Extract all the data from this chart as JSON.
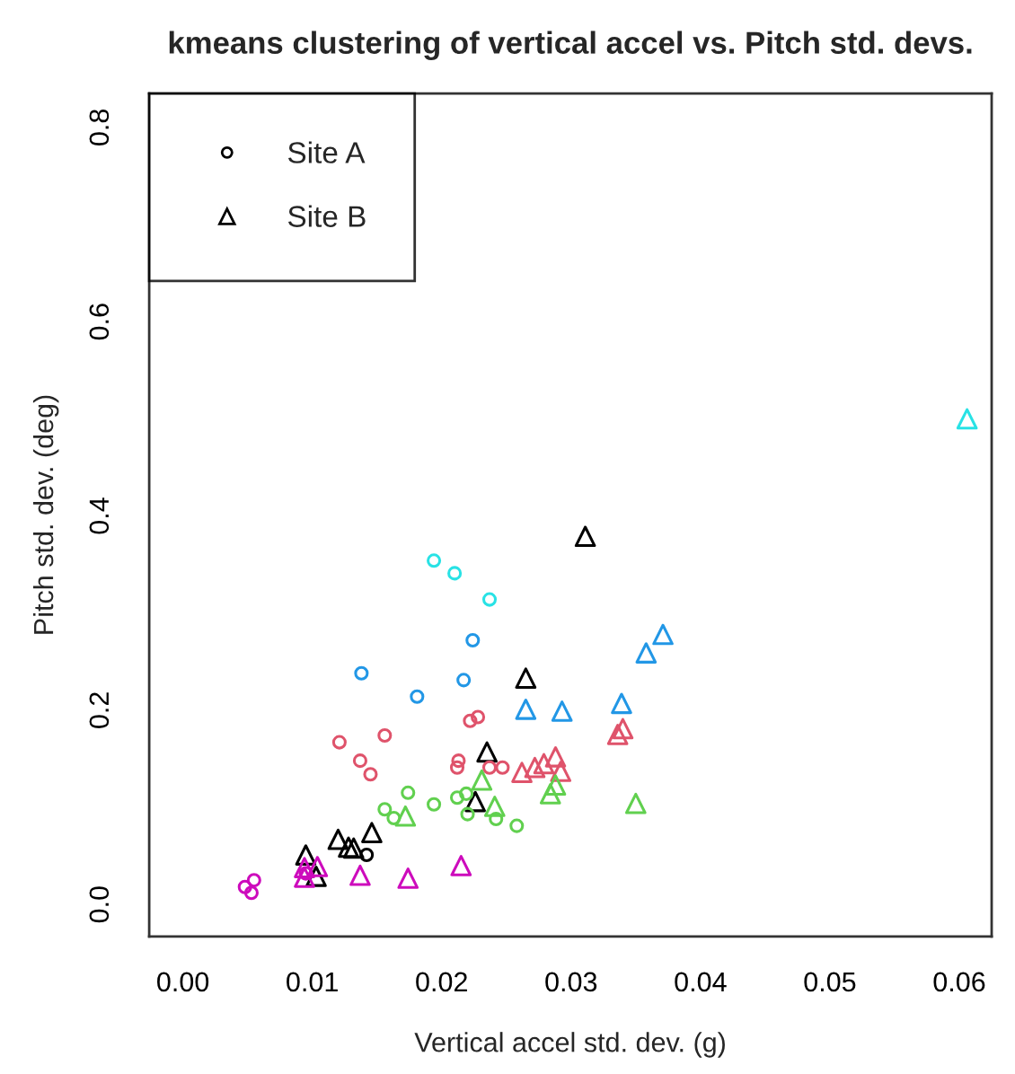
{
  "chart_data": {
    "type": "scatter",
    "title": "kmeans clustering of vertical accel vs. Pitch std. devs.",
    "xlabel": "Vertical accel std. dev. (g)",
    "ylabel": "Pitch std. dev. (deg)",
    "xlim": [
      -0.0026,
      0.0625
    ],
    "ylim": [
      -0.033,
      0.835
    ],
    "xticks": [
      {
        "value": 0,
        "label": "0.00"
      },
      {
        "value": 0.01,
        "label": "0.01"
      },
      {
        "value": 0.02,
        "label": "0.02"
      },
      {
        "value": 0.03,
        "label": "0.03"
      },
      {
        "value": 0.04,
        "label": "0.04"
      },
      {
        "value": 0.05,
        "label": "0.05"
      },
      {
        "value": 0.06,
        "label": "0.06"
      }
    ],
    "yticks": [
      {
        "value": 0,
        "label": "0.0"
      },
      0.2,
      0.4,
      0.6,
      0.8
    ],
    "grid": false,
    "legend": "top left",
    "series": [
      {
        "name": "Site A",
        "color": "#000000",
        "marker": "circle",
        "x": [
          0.0142
        ],
        "values": [
          0.051
        ]
      },
      {
        "name": "Site B",
        "color": "#000000",
        "marker": "triangle",
        "x": [
          0.0146,
          0.012,
          0.0095,
          0.0132
        ],
        "values": [
          0.074,
          0.067,
          0.051,
          0.058
        ]
      },
      {
        "color": "#000000",
        "marker": "triangle",
        "x": [
          0.0128,
          0.0103,
          0.0311,
          0.0265,
          0.0235,
          0.0226
        ],
        "values": [
          0.059,
          0.029,
          0.379,
          0.233,
          0.157,
          0.106
        ]
      },
      {
        "color": "#DF536B",
        "marker": "circle",
        "x": [
          0.0121,
          0.0156,
          0.0137,
          0.0145,
          0.0222,
          0.0228,
          0.0213,
          0.0212,
          0.0237,
          0.0247
        ],
        "values": [
          0.167,
          0.174,
          0.148,
          0.134,
          0.189,
          0.193,
          0.148,
          0.141,
          0.141,
          0.141
        ]
      },
      {
        "color": "#DF536B",
        "marker": "triangle",
        "x": [
          0.0262,
          0.0272,
          0.0279,
          0.0288,
          0.0292,
          0.0336,
          0.034
        ],
        "values": [
          0.136,
          0.141,
          0.145,
          0.152,
          0.137,
          0.175,
          0.181
        ]
      },
      {
        "color": "#61D04F",
        "marker": "circle",
        "x": [
          0.0174,
          0.0156,
          0.0163,
          0.0194,
          0.0212,
          0.0219,
          0.022,
          0.0242,
          0.0258
        ],
        "values": [
          0.115,
          0.098,
          0.089,
          0.103,
          0.11,
          0.114,
          0.093,
          0.088,
          0.081
        ]
      },
      {
        "color": "#61D04F",
        "marker": "triangle",
        "x": [
          0.0172,
          0.0231,
          0.0241,
          0.0284,
          0.0288,
          0.035
        ],
        "values": [
          0.091,
          0.128,
          0.101,
          0.114,
          0.123,
          0.104
        ]
      },
      {
        "color": "#2297E6",
        "marker": "circle",
        "x": [
          0.0138,
          0.0181,
          0.0224,
          0.0217
        ],
        "values": [
          0.238,
          0.214,
          0.272,
          0.231
        ]
      },
      {
        "color": "#2297E6",
        "marker": "triangle",
        "x": [
          0.0265,
          0.0293,
          0.0339,
          0.0358,
          0.0371
        ],
        "values": [
          0.201,
          0.199,
          0.207,
          0.259,
          0.278
        ]
      },
      {
        "color": "#28E2E5",
        "marker": "circle",
        "x": [
          0.0194,
          0.021,
          0.0237
        ],
        "values": [
          0.354,
          0.341,
          0.314
        ]
      },
      {
        "color": "#28E2E5",
        "marker": "triangle",
        "x": [
          0.0606
        ],
        "values": [
          0.5
        ]
      },
      {
        "color": "#CD0BBC",
        "marker": "circle",
        "x": [
          0.0048,
          0.0053,
          0.0055,
          0.0095
        ],
        "values": [
          0.018,
          0.012,
          0.025,
          0.032
        ]
      },
      {
        "color": "#CD0BBC",
        "marker": "triangle",
        "x": [
          0.0094,
          0.0094,
          0.0104,
          0.0137,
          0.0174,
          0.0215
        ],
        "values": [
          0.028,
          0.038,
          0.039,
          0.03,
          0.027,
          0.04
        ]
      }
    ]
  }
}
